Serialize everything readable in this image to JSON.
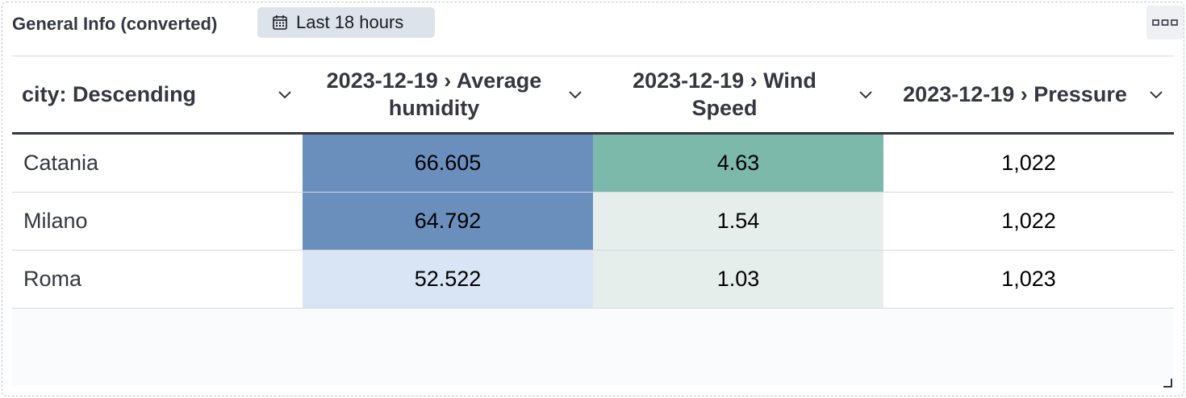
{
  "panel": {
    "title": "General Info (converted)",
    "time_range": "Last 18 hours"
  },
  "table": {
    "columns": [
      {
        "label": "city: Descending"
      },
      {
        "label": "2023-12-19 › Average humidity"
      },
      {
        "label": "2023-12-19 › Wind Speed"
      },
      {
        "label": "2023-12-19 › Pressure"
      }
    ],
    "rows": [
      {
        "city": "Catania",
        "humidity": "66.605",
        "wind": "4.63",
        "pressure": "1,022"
      },
      {
        "city": "Milano",
        "humidity": "64.792",
        "wind": "1.54",
        "pressure": "1,022"
      },
      {
        "city": "Roma",
        "humidity": "52.522",
        "wind": "1.03",
        "pressure": "1,023"
      }
    ]
  },
  "colors": {
    "humidity_high": "#6b8fbd",
    "humidity_low": "#d9e5f4",
    "wind_high": "#7db9ab",
    "wind_low": "#e6eeeb",
    "header_rule": "#343741"
  }
}
